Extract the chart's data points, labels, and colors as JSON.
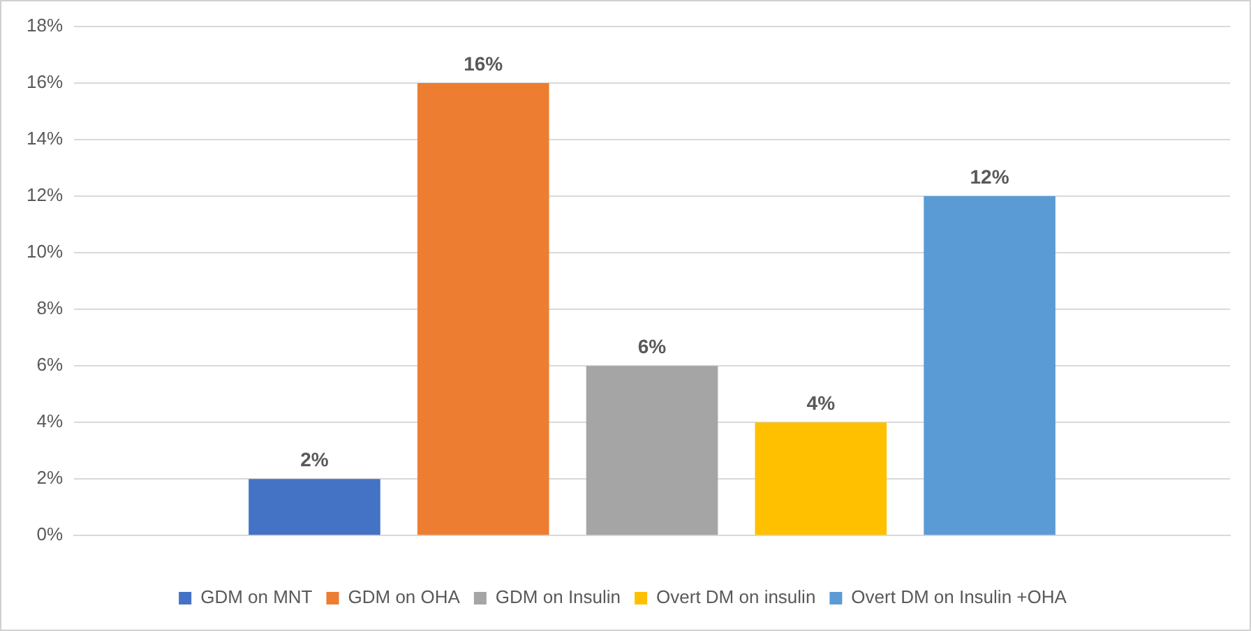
{
  "chart_data": {
    "type": "bar",
    "categories": [
      null
    ],
    "series": [
      {
        "name": "GDM on MNT",
        "color": "#4472c4",
        "values": [
          2
        ],
        "value_labels": [
          "2%"
        ]
      },
      {
        "name": "GDM on OHA",
        "color": "#ed7d31",
        "values": [
          16
        ],
        "value_labels": [
          "16%"
        ]
      },
      {
        "name": "GDM on Insulin",
        "color": "#a5a5a5",
        "values": [
          6
        ],
        "value_labels": [
          "6%"
        ]
      },
      {
        "name": "Overt DM on insulin",
        "color": "#ffc000",
        "values": [
          4
        ],
        "value_labels": [
          "4%"
        ]
      },
      {
        "name": "Overt DM on Insulin +OHA",
        "color": "#5b9bd5",
        "values": [
          12
        ],
        "value_labels": [
          "12%"
        ]
      }
    ],
    "ylim": [
      0,
      18
    ],
    "yticks": [
      {
        "value": 0,
        "label": "0%"
      },
      {
        "value": 2,
        "label": "2%"
      },
      {
        "value": 4,
        "label": "4%"
      },
      {
        "value": 6,
        "label": "6%"
      },
      {
        "value": 8,
        "label": "8%"
      },
      {
        "value": 10,
        "label": "10%"
      },
      {
        "value": 12,
        "label": "12%"
      },
      {
        "value": 14,
        "label": "14%"
      },
      {
        "value": 16,
        "label": "16%"
      },
      {
        "value": 18,
        "label": "18%"
      }
    ],
    "grid": "y",
    "legend": "bottom"
  }
}
